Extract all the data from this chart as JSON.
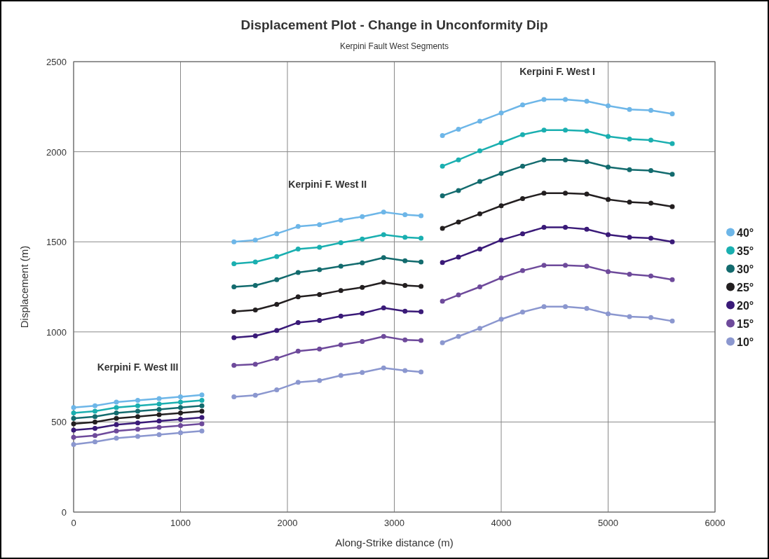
{
  "chart_data": {
    "type": "line",
    "title": "Displacement Plot - Change in Unconformity Dip",
    "subtitle": "Kerpini Fault West Segments",
    "xlabel": "Along-Strike distance (m)",
    "ylabel": "Displacement (m)",
    "x": [
      0,
      200,
      400,
      600,
      800,
      1000,
      1200,
      1350,
      1500,
      1700,
      1900,
      2100,
      2300,
      2500,
      2700,
      2900,
      3100,
      3250,
      3350,
      3450,
      3600,
      3800,
      4000,
      4200,
      4400,
      4600,
      4800,
      5000,
      5200,
      5400,
      5600
    ],
    "series": [
      {
        "name": "40°",
        "color": "#6db6e8",
        "values": [
          580,
          590,
          610,
          620,
          630,
          640,
          650,
          null,
          1500,
          1510,
          1545,
          1585,
          1595,
          1620,
          1640,
          1665,
          1650,
          1645,
          null,
          2090,
          2125,
          2170,
          2215,
          2260,
          2290,
          2290,
          2280,
          2255,
          2235,
          2230,
          2210
        ]
      },
      {
        "name": "35°",
        "color": "#1aafb0",
        "values": [
          550,
          560,
          580,
          590,
          600,
          610,
          620,
          null,
          1378,
          1388,
          1418,
          1460,
          1470,
          1495,
          1515,
          1540,
          1525,
          1520,
          null,
          1920,
          1955,
          2005,
          2050,
          2095,
          2120,
          2120,
          2115,
          2085,
          2070,
          2065,
          2045
        ]
      },
      {
        "name": "30°",
        "color": "#136b6e",
        "values": [
          520,
          530,
          550,
          560,
          570,
          580,
          590,
          null,
          1250,
          1258,
          1290,
          1330,
          1345,
          1365,
          1383,
          1412,
          1395,
          1388,
          null,
          1755,
          1785,
          1835,
          1880,
          1920,
          1955,
          1955,
          1945,
          1915,
          1900,
          1895,
          1875
        ]
      },
      {
        "name": "25°",
        "color": "#231f20",
        "values": [
          490,
          500,
          520,
          530,
          540,
          550,
          560,
          null,
          1113,
          1122,
          1153,
          1195,
          1207,
          1230,
          1247,
          1275,
          1258,
          1253,
          null,
          1575,
          1610,
          1655,
          1700,
          1740,
          1770,
          1770,
          1765,
          1735,
          1720,
          1715,
          1695
        ]
      },
      {
        "name": "20°",
        "color": "#3a1a78",
        "values": [
          455,
          465,
          485,
          495,
          505,
          515,
          525,
          null,
          968,
          978,
          1008,
          1052,
          1063,
          1088,
          1103,
          1133,
          1115,
          1112,
          null,
          1385,
          1415,
          1460,
          1510,
          1545,
          1580,
          1580,
          1570,
          1540,
          1525,
          1520,
          1500
        ]
      },
      {
        "name": "15°",
        "color": "#6e4a9b",
        "values": [
          415,
          425,
          450,
          460,
          470,
          480,
          490,
          null,
          815,
          820,
          853,
          893,
          905,
          928,
          947,
          975,
          955,
          953,
          null,
          1170,
          1205,
          1250,
          1300,
          1340,
          1370,
          1370,
          1365,
          1335,
          1320,
          1310,
          1290
        ]
      },
      {
        "name": "10°",
        "color": "#8b97cf",
        "values": [
          375,
          390,
          410,
          420,
          430,
          440,
          450,
          null,
          640,
          648,
          678,
          720,
          730,
          758,
          775,
          800,
          785,
          778,
          null,
          940,
          975,
          1020,
          1070,
          1110,
          1140,
          1140,
          1130,
          1100,
          1085,
          1080,
          1060
        ]
      }
    ],
    "annotations": [
      "Kerpini F. West III",
      "Kerpini F. West II",
      "Kerpini F. West I"
    ],
    "xlim": [
      0,
      6000
    ],
    "xticks": [
      0,
      1000,
      2000,
      3000,
      4000,
      5000,
      6000
    ],
    "ylim": [
      0,
      2500
    ],
    "yticks": [
      0,
      500,
      1000,
      1500,
      2000,
      2500
    ],
    "grid": true,
    "legend": "right",
    "marker": "circle",
    "line_style": "solid"
  }
}
